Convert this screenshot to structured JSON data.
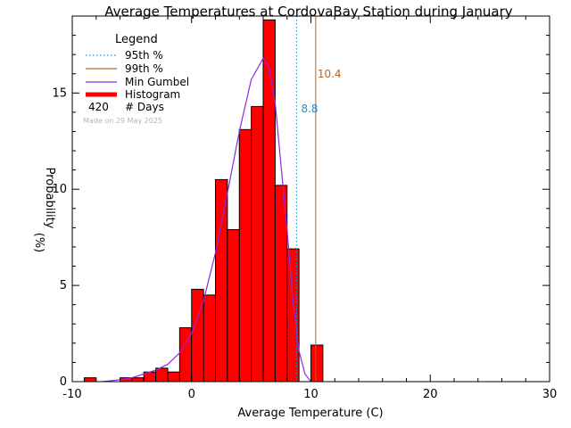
{
  "chart_data": {
    "type": "bar",
    "title": "Average Temperatures at CordovaBay Station during January",
    "xlabel": "Average Temperature (C)",
    "ylabel": "Probability",
    "ylabel_unit": "(%)",
    "xlim": [
      -10,
      30
    ],
    "ylim": [
      0,
      19
    ],
    "x_ticks": [
      -10,
      0,
      10,
      20,
      30
    ],
    "y_ticks": [
      0,
      5,
      10,
      15
    ],
    "bin_width": 1,
    "histogram": {
      "bin_left": [
        -9,
        -8,
        -7,
        -6,
        -5,
        -4,
        -3,
        -2,
        -1,
        0,
        1,
        2,
        3,
        4,
        5,
        6,
        7,
        8,
        9,
        10
      ],
      "values": [
        0.2,
        0,
        0,
        0.2,
        0.2,
        0.5,
        0.7,
        0.5,
        2.8,
        4.8,
        4.5,
        10.5,
        7.9,
        13.1,
        14.3,
        18.8,
        10.2,
        6.9,
        0,
        1.9
      ]
    },
    "gumbel_curve": {
      "x": [
        -7.5,
        -6,
        -5,
        -4,
        -3,
        -2,
        -1,
        0,
        1,
        2,
        3,
        4,
        5,
        6,
        6.5,
        7,
        8,
        8.5,
        9,
        9.5,
        10
      ],
      "y": [
        0.0,
        0.1,
        0.2,
        0.4,
        0.6,
        0.9,
        1.5,
        2.5,
        4.2,
        6.7,
        9.8,
        13.0,
        15.7,
        16.8,
        16.3,
        14.5,
        7.9,
        4.2,
        1.6,
        0.4,
        0.0
      ]
    },
    "percentile_95": {
      "label": "95th %",
      "value": 8.8,
      "text": "8.8",
      "color": "#1e90c8"
    },
    "percentile_99": {
      "label": "99th %",
      "value": 10.4,
      "text": "10.4",
      "color": "#b8641e"
    },
    "legend": {
      "title": "Legend",
      "placement": "top-left",
      "entries": [
        {
          "label": "95th %",
          "style": "dotted",
          "color": "#1e90c8"
        },
        {
          "label": "99th %",
          "style": "solid",
          "color": "#b8641e"
        },
        {
          "label": "Min Gumbel",
          "style": "solid",
          "color": "#8a2be2"
        },
        {
          "label": "Histogram",
          "style": "thick",
          "color": "#ff0000"
        }
      ],
      "count": "420",
      "count_label": "# Days"
    },
    "made_on": "Made on 29 May 2025",
    "colors": {
      "histogram_fill": "#ff0000",
      "histogram_edge": "#000000",
      "gumbel": "#8a2be2"
    }
  }
}
